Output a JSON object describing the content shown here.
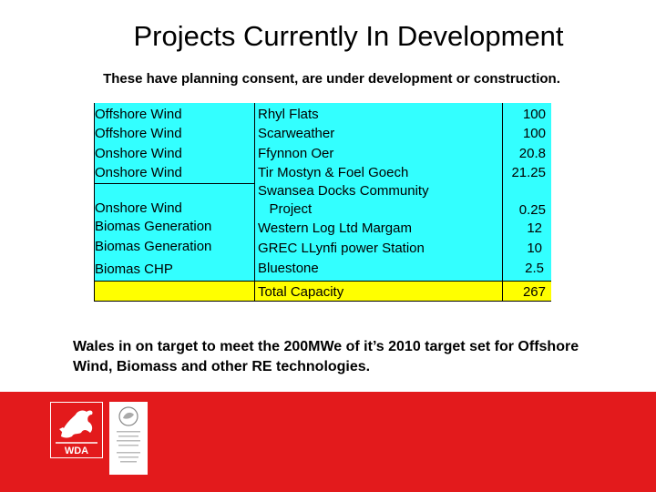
{
  "title": "Projects Currently In Development",
  "subtitle": "These have planning consent, are under development or construction.",
  "table": {
    "rows": [
      {
        "type": "Offshore Wind",
        "project": "Rhyl Flats",
        "mw": "100"
      },
      {
        "type": "Offshore Wind",
        "project": "Scarweather",
        "mw": "100"
      },
      {
        "type": "Onshore Wind",
        "project": "Ffynnon Oer",
        "mw": "20.8"
      },
      {
        "type": "Onshore Wind",
        "project": "Tir Mostyn & Foel Goech",
        "mw": "21.25"
      },
      {
        "type": "Onshore Wind",
        "project": "Swansea Docks Community\n   Project",
        "mw": "0.25"
      },
      {
        "type": "Biomas Generation",
        "project": "Western Log Ltd Margam",
        "mw": "12"
      },
      {
        "type": "Biomas Generation",
        "project": "GREC LLynfi power Station",
        "mw": "10"
      },
      {
        "type": "Biomas CHP",
        "project": "Bluestone",
        "mw": "2.5"
      }
    ],
    "total_label": "Total Capacity",
    "total_value": "267"
  },
  "note": "Wales in on target to meet the 200MWe of it’s 2010 target set for Offshore Wind, Biomass and other RE technologies.",
  "footer": {
    "logo_text": "WDA",
    "color": "#e31a1c"
  },
  "colors": {
    "table_bg": "#33ffff",
    "total_bg": "#ffff00"
  }
}
